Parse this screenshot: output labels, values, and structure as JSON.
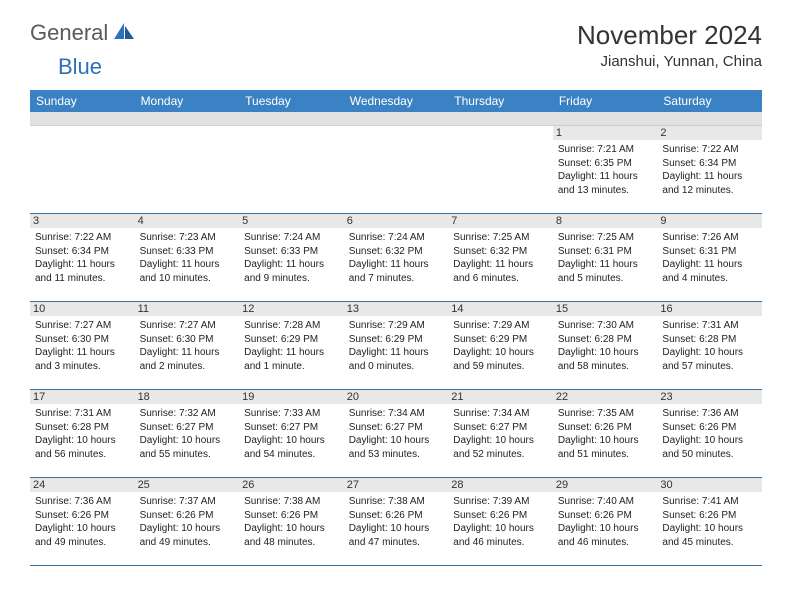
{
  "logo": {
    "general": "General",
    "blue": "Blue"
  },
  "header": {
    "month_title": "November 2024",
    "location": "Jianshui, Yunnan, China"
  },
  "colors": {
    "header_bg": "#3b82c4",
    "header_fg": "#ffffff",
    "daynum_bg": "#e8e8e8",
    "subhead_bg": "#e1e1e1",
    "row_border": "#3b6fa3",
    "logo_blue": "#2f71b8",
    "logo_grey": "#5a5a5a"
  },
  "calendar": {
    "day_names": [
      "Sunday",
      "Monday",
      "Tuesday",
      "Wednesday",
      "Thursday",
      "Friday",
      "Saturday"
    ],
    "first_weekday_index": 5,
    "days": [
      {
        "n": 1,
        "sunrise": "7:21 AM",
        "sunset": "6:35 PM",
        "day_h": 11,
        "day_m": 13
      },
      {
        "n": 2,
        "sunrise": "7:22 AM",
        "sunset": "6:34 PM",
        "day_h": 11,
        "day_m": 12
      },
      {
        "n": 3,
        "sunrise": "7:22 AM",
        "sunset": "6:34 PM",
        "day_h": 11,
        "day_m": 11
      },
      {
        "n": 4,
        "sunrise": "7:23 AM",
        "sunset": "6:33 PM",
        "day_h": 11,
        "day_m": 10
      },
      {
        "n": 5,
        "sunrise": "7:24 AM",
        "sunset": "6:33 PM",
        "day_h": 11,
        "day_m": 9
      },
      {
        "n": 6,
        "sunrise": "7:24 AM",
        "sunset": "6:32 PM",
        "day_h": 11,
        "day_m": 7
      },
      {
        "n": 7,
        "sunrise": "7:25 AM",
        "sunset": "6:32 PM",
        "day_h": 11,
        "day_m": 6
      },
      {
        "n": 8,
        "sunrise": "7:25 AM",
        "sunset": "6:31 PM",
        "day_h": 11,
        "day_m": 5
      },
      {
        "n": 9,
        "sunrise": "7:26 AM",
        "sunset": "6:31 PM",
        "day_h": 11,
        "day_m": 4
      },
      {
        "n": 10,
        "sunrise": "7:27 AM",
        "sunset": "6:30 PM",
        "day_h": 11,
        "day_m": 3
      },
      {
        "n": 11,
        "sunrise": "7:27 AM",
        "sunset": "6:30 PM",
        "day_h": 11,
        "day_m": 2
      },
      {
        "n": 12,
        "sunrise": "7:28 AM",
        "sunset": "6:29 PM",
        "day_h": 11,
        "day_m": 1
      },
      {
        "n": 13,
        "sunrise": "7:29 AM",
        "sunset": "6:29 PM",
        "day_h": 11,
        "day_m": 0
      },
      {
        "n": 14,
        "sunrise": "7:29 AM",
        "sunset": "6:29 PM",
        "day_h": 10,
        "day_m": 59
      },
      {
        "n": 15,
        "sunrise": "7:30 AM",
        "sunset": "6:28 PM",
        "day_h": 10,
        "day_m": 58
      },
      {
        "n": 16,
        "sunrise": "7:31 AM",
        "sunset": "6:28 PM",
        "day_h": 10,
        "day_m": 57
      },
      {
        "n": 17,
        "sunrise": "7:31 AM",
        "sunset": "6:28 PM",
        "day_h": 10,
        "day_m": 56
      },
      {
        "n": 18,
        "sunrise": "7:32 AM",
        "sunset": "6:27 PM",
        "day_h": 10,
        "day_m": 55
      },
      {
        "n": 19,
        "sunrise": "7:33 AM",
        "sunset": "6:27 PM",
        "day_h": 10,
        "day_m": 54
      },
      {
        "n": 20,
        "sunrise": "7:34 AM",
        "sunset": "6:27 PM",
        "day_h": 10,
        "day_m": 53
      },
      {
        "n": 21,
        "sunrise": "7:34 AM",
        "sunset": "6:27 PM",
        "day_h": 10,
        "day_m": 52
      },
      {
        "n": 22,
        "sunrise": "7:35 AM",
        "sunset": "6:26 PM",
        "day_h": 10,
        "day_m": 51
      },
      {
        "n": 23,
        "sunrise": "7:36 AM",
        "sunset": "6:26 PM",
        "day_h": 10,
        "day_m": 50
      },
      {
        "n": 24,
        "sunrise": "7:36 AM",
        "sunset": "6:26 PM",
        "day_h": 10,
        "day_m": 49
      },
      {
        "n": 25,
        "sunrise": "7:37 AM",
        "sunset": "6:26 PM",
        "day_h": 10,
        "day_m": 49
      },
      {
        "n": 26,
        "sunrise": "7:38 AM",
        "sunset": "6:26 PM",
        "day_h": 10,
        "day_m": 48
      },
      {
        "n": 27,
        "sunrise": "7:38 AM",
        "sunset": "6:26 PM",
        "day_h": 10,
        "day_m": 47
      },
      {
        "n": 28,
        "sunrise": "7:39 AM",
        "sunset": "6:26 PM",
        "day_h": 10,
        "day_m": 46
      },
      {
        "n": 29,
        "sunrise": "7:40 AM",
        "sunset": "6:26 PM",
        "day_h": 10,
        "day_m": 46
      },
      {
        "n": 30,
        "sunrise": "7:41 AM",
        "sunset": "6:26 PM",
        "day_h": 10,
        "day_m": 45
      }
    ],
    "labels": {
      "sunrise_prefix": "Sunrise: ",
      "sunset_prefix": "Sunset: ",
      "daylight_prefix": "Daylight: ",
      "hours_word": " hours",
      "and_word": "and ",
      "minute_word_singular": " minute.",
      "minute_word_plural": " minutes."
    }
  }
}
